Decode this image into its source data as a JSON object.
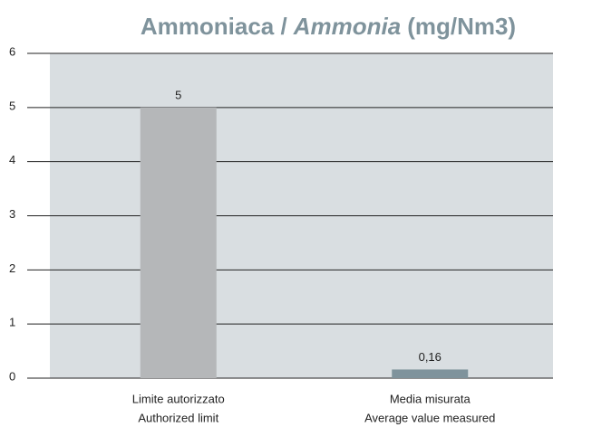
{
  "chart_data": {
    "type": "bar",
    "title": [
      "Ammoniaca /",
      "Ammonia",
      "(mg/Nm3)"
    ],
    "title_italic": [
      false,
      true,
      false
    ],
    "categories": [
      [
        "Limite autorizzato",
        "Authorized limit"
      ],
      [
        "Media misurata",
        "Average value measured"
      ]
    ],
    "values": [
      5,
      0.16
    ],
    "value_labels": [
      "5",
      "0,16"
    ],
    "colors": [
      "#b5b7b9",
      "#7f939c"
    ],
    "ylim": [
      0,
      6
    ],
    "yticks": [
      0,
      1,
      2,
      3,
      4,
      5,
      6
    ],
    "grid": true
  }
}
